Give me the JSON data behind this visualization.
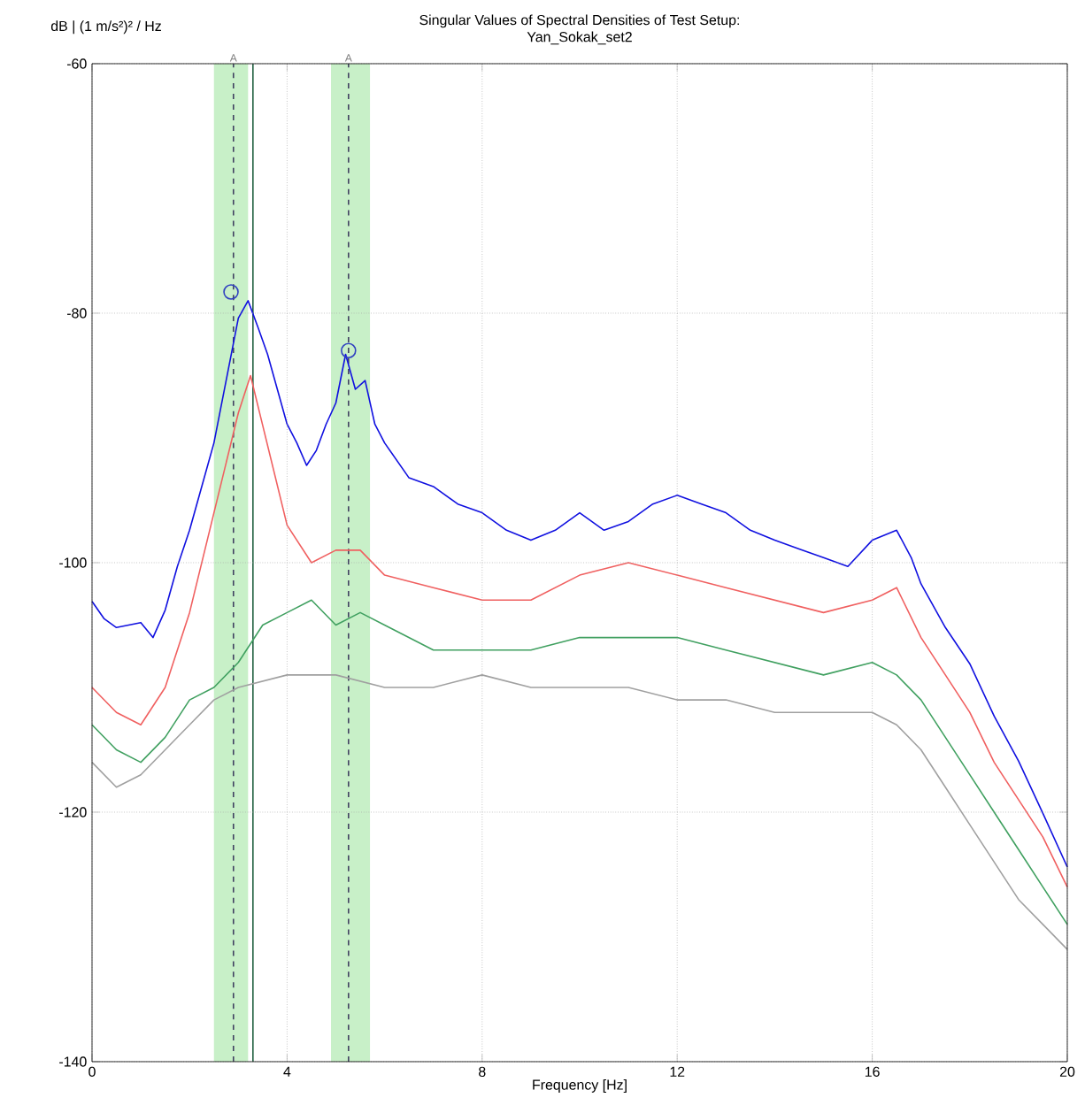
{
  "chart_data": {
    "type": "line",
    "title": "Singular Values of Spectral Densities of Test Setup:",
    "subtitle": "Yan_Sokak_set2",
    "xlabel": "Frequency [Hz]",
    "ylabel": "dB | (1 m/s²)² / Hz",
    "xlim": [
      0,
      20
    ],
    "ylim": [
      -140,
      -60
    ],
    "xticks": [
      0,
      4,
      8,
      12,
      16,
      20
    ],
    "yticks": [
      -140,
      -120,
      -100,
      -80,
      -60
    ],
    "grid": true,
    "marker": "none",
    "line_style": "solid",
    "series": [
      {
        "color": "#1010e0",
        "x": [
          0,
          0.25,
          0.5,
          1,
          1.25,
          1.5,
          1.75,
          2,
          2.25,
          2.5,
          2.75,
          3,
          3.2,
          3.4,
          3.6,
          3.8,
          4,
          4.2,
          4.4,
          4.6,
          4.8,
          5,
          5.2,
          5.4,
          5.6,
          5.8,
          6,
          6.5,
          7,
          7.5,
          8,
          8.5,
          9,
          9.5,
          10,
          10.5,
          11,
          11.5,
          12,
          12.5,
          13,
          13.5,
          14,
          14.5,
          15,
          15.5,
          16,
          16.5,
          16.8,
          17,
          17.5,
          18,
          18.5,
          19,
          19.5,
          20
        ],
        "values": [
          -103.1,
          -104.5,
          -105.2,
          -104.8,
          -106,
          -103.8,
          -100.3,
          -97.4,
          -93.9,
          -90.4,
          -85.4,
          -80.4,
          -79,
          -81.1,
          -83.3,
          -86.1,
          -88.9,
          -90.4,
          -92.2,
          -91,
          -88.9,
          -87.2,
          -83.3,
          -86.1,
          -85.4,
          -88.9,
          -90.4,
          -93.2,
          -93.9,
          -95.3,
          -96,
          -97.4,
          -98.2,
          -97.4,
          -96,
          -97.4,
          -96.7,
          -95.3,
          -94.6,
          -95.3,
          -96,
          -97.4,
          -98.2,
          -98.9,
          -99.6,
          -100.3,
          -98.2,
          -97.4,
          -99.6,
          -101.7,
          -105.2,
          -108.1,
          -112.3,
          -115.9,
          -120.1,
          -124.4
        ]
      },
      {
        "color": "#f06060",
        "x": [
          0,
          0.5,
          1,
          1.5,
          2,
          2.5,
          3,
          3.25,
          3.5,
          4,
          4.5,
          5,
          5.5,
          6,
          7,
          8,
          9,
          10,
          11,
          12,
          13,
          14,
          15,
          16,
          16.5,
          17,
          17.5,
          18,
          18.5,
          19,
          19.5,
          20
        ],
        "values": [
          -110,
          -112,
          -113,
          -110,
          -104,
          -96,
          -88,
          -85,
          -89,
          -97,
          -100,
          -99,
          -99,
          -101,
          -102,
          -103,
          -103,
          -101,
          -100,
          -101,
          -102,
          -103,
          -104,
          -103,
          -102,
          -106,
          -109,
          -112,
          -116,
          -119,
          -122,
          -126
        ]
      },
      {
        "color": "#40a060",
        "x": [
          0,
          0.5,
          1,
          1.5,
          2,
          2.5,
          3,
          3.5,
          4,
          4.5,
          5,
          5.5,
          6,
          7,
          8,
          9,
          10,
          11,
          12,
          13,
          14,
          15,
          16,
          16.5,
          17,
          17.5,
          18,
          18.5,
          19,
          19.5,
          20
        ],
        "values": [
          -113,
          -115,
          -116,
          -114,
          -111,
          -110,
          -108,
          -105,
          -104,
          -103,
          -105,
          -104,
          -105,
          -107,
          -107,
          -107,
          -106,
          -106,
          -106,
          -107,
          -108,
          -109,
          -108,
          -109,
          -111,
          -114,
          -117,
          -120,
          -123,
          -126,
          -129
        ]
      },
      {
        "color": "#a0a0a0",
        "x": [
          0,
          0.5,
          1,
          1.5,
          2,
          2.5,
          3,
          4,
          5,
          6,
          7,
          8,
          9,
          10,
          11,
          12,
          13,
          14,
          15,
          16,
          16.5,
          17,
          17.5,
          18,
          18.5,
          19,
          19.5,
          20
        ],
        "values": [
          -116,
          -118,
          -117,
          -115,
          -113,
          -111,
          -110,
          -109,
          -109,
          -110,
          -110,
          -109,
          -110,
          -110,
          -110,
          -111,
          -111,
          -112,
          -112,
          -112,
          -113,
          -115,
          -118,
          -121,
          -124,
          -127,
          -129,
          -131
        ]
      },
      {
        "type": "scatter",
        "marker": "circle",
        "color": "#3040c0",
        "x": [
          2.85,
          5.26
        ],
        "values": [
          -78.3,
          -83
        ]
      }
    ],
    "ref_lines": [
      {
        "axis": "x",
        "value": 2.9,
        "label": "A",
        "line_style": "dashed",
        "color": "#404060"
      },
      {
        "axis": "x",
        "value": 3.3,
        "label": null,
        "line_style": "solid",
        "color": "#206040"
      },
      {
        "axis": "x",
        "value": 5.26,
        "label": "A",
        "line_style": "dashed",
        "color": "#404060"
      }
    ],
    "bands": [
      {
        "axis": "x",
        "from": 2.5,
        "to": 3.2,
        "label": null,
        "color": "#c8f0c8"
      },
      {
        "axis": "x",
        "from": 4.9,
        "to": 5.7,
        "label": null,
        "color": "#c8f0c8"
      }
    ]
  }
}
